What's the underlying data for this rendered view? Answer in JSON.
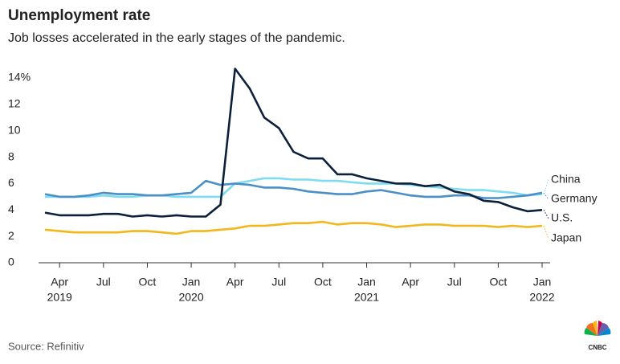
{
  "chart_data": {
    "type": "line",
    "title": "Unemployment rate",
    "subtitle": "Job losses accelerated in the early stages of the pandemic.",
    "source": "Source: Refinitiv",
    "logo_text": "CNBC",
    "x": [
      "2019-03",
      "2019-04",
      "2019-05",
      "2019-06",
      "2019-07",
      "2019-08",
      "2019-09",
      "2019-10",
      "2019-11",
      "2019-12",
      "2020-01",
      "2020-02",
      "2020-03",
      "2020-04",
      "2020-05",
      "2020-06",
      "2020-07",
      "2020-08",
      "2020-09",
      "2020-10",
      "2020-11",
      "2020-12",
      "2021-01",
      "2021-02",
      "2021-03",
      "2021-04",
      "2021-05",
      "2021-06",
      "2021-07",
      "2021-08",
      "2021-09",
      "2021-10",
      "2021-11",
      "2021-12",
      "2022-01"
    ],
    "xlim": [
      "2019-03",
      "2022-01"
    ],
    "xticks": [
      {
        "value": "2019-04",
        "label": "Apr",
        "sublabel": "2019"
      },
      {
        "value": "2019-07",
        "label": "Jul"
      },
      {
        "value": "2019-10",
        "label": "Oct"
      },
      {
        "value": "2020-01",
        "label": "Jan",
        "sublabel": "2020"
      },
      {
        "value": "2020-04",
        "label": "Apr"
      },
      {
        "value": "2020-07",
        "label": "Jul"
      },
      {
        "value": "2020-10",
        "label": "Oct"
      },
      {
        "value": "2021-01",
        "label": "Jan",
        "sublabel": "2021"
      },
      {
        "value": "2021-04",
        "label": "Apr"
      },
      {
        "value": "2021-07",
        "label": "Jul"
      },
      {
        "value": "2021-10",
        "label": "Oct"
      },
      {
        "value": "2022-01",
        "label": "Jan",
        "sublabel": "2022"
      }
    ],
    "ylim": [
      0,
      14
    ],
    "yticks": [
      0,
      2,
      4,
      6,
      8,
      10,
      12,
      {
        "value": 14,
        "label": "14%"
      }
    ],
    "series": [
      {
        "name": "China",
        "color": "#7fdcf0",
        "values": [
          5.0,
          5.0,
          5.0,
          5.0,
          5.1,
          5.0,
          5.0,
          5.1,
          5.1,
          5.0,
          5.0,
          5.0,
          5.0,
          6.0,
          6.2,
          6.4,
          6.4,
          6.3,
          6.3,
          6.2,
          6.2,
          6.1,
          6.0,
          6.0,
          6.0,
          5.9,
          5.8,
          5.7,
          5.6,
          5.5,
          5.5,
          5.4,
          5.3,
          5.1,
          5.2
        ]
      },
      {
        "name": "Germany",
        "color": "#4a8fc8",
        "values": [
          5.2,
          5.0,
          5.0,
          5.1,
          5.3,
          5.2,
          5.2,
          5.1,
          5.1,
          5.2,
          5.3,
          6.2,
          5.9,
          6.0,
          5.9,
          5.7,
          5.7,
          5.6,
          5.4,
          5.3,
          5.2,
          5.2,
          5.4,
          5.5,
          5.3,
          5.1,
          5.0,
          5.0,
          5.1,
          5.1,
          4.9,
          4.9,
          5.0,
          5.1,
          5.3
        ]
      },
      {
        "name": "U.S.",
        "color": "#0c1f3b",
        "values": [
          3.8,
          3.6,
          3.6,
          3.6,
          3.7,
          3.7,
          3.5,
          3.6,
          3.5,
          3.6,
          3.5,
          3.5,
          4.4,
          14.7,
          13.2,
          11.0,
          10.2,
          8.4,
          7.9,
          7.9,
          6.7,
          6.7,
          6.4,
          6.2,
          6.0,
          6.0,
          5.8,
          5.9,
          5.4,
          5.2,
          4.7,
          4.6,
          4.2,
          3.9,
          4.0
        ]
      },
      {
        "name": "Japan",
        "color": "#f4b71b",
        "values": [
          2.5,
          2.4,
          2.3,
          2.3,
          2.3,
          2.3,
          2.4,
          2.4,
          2.3,
          2.2,
          2.4,
          2.4,
          2.5,
          2.6,
          2.8,
          2.8,
          2.9,
          3.0,
          3.0,
          3.1,
          2.9,
          3.0,
          3.0,
          2.9,
          2.7,
          2.8,
          2.9,
          2.9,
          2.8,
          2.8,
          2.8,
          2.7,
          2.8,
          2.7,
          2.8
        ]
      }
    ]
  }
}
